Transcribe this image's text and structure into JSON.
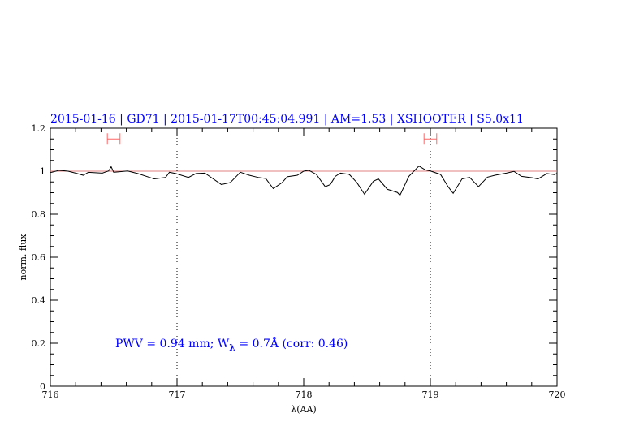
{
  "chart_data": {
    "type": "line",
    "title": "2015-01-16 | GD71 | 2015-01-17T00:45:04.991 | AM=1.53 | XSHOOTER | S5.0x11",
    "xlabel": "λ(AA)",
    "ylabel": "norm. flux",
    "xlim": [
      716,
      720
    ],
    "ylim": [
      0,
      1.2
    ],
    "x_ticks": [
      "716",
      "717",
      "718",
      "719",
      "720"
    ],
    "y_ticks": [
      "0",
      "0.2",
      "0.4",
      "0.6",
      "0.8",
      "1",
      "1.2"
    ],
    "reference_line": 1.0,
    "vertical_markers": [
      717,
      719
    ],
    "error_bars": [
      {
        "center": 716.5,
        "half_width": 0.05,
        "y": 1.15
      },
      {
        "center": 719.0,
        "half_width": 0.05,
        "y": 1.15
      }
    ],
    "annotation": {
      "prefix": "PWV = 0.94 mm; W",
      "sub": "λ",
      "suffix": " = 0.7Å (corr: 0.46)"
    },
    "colors": {
      "title": "#0000ff",
      "series": "#000000",
      "reference": "#e08080",
      "error_bars": "#ff6666",
      "annotation": "#0000ff"
    },
    "series": [
      {
        "x": [
          716.0,
          716.01,
          716.07,
          716.14,
          716.2,
          716.26,
          716.3,
          716.41,
          716.46,
          716.48,
          716.5,
          716.61,
          716.69,
          716.82,
          716.91,
          716.94,
          716.99,
          717.09,
          717.15,
          717.22,
          717.35,
          717.42,
          717.5,
          717.57,
          717.64,
          717.7,
          717.76,
          717.83,
          717.87,
          717.95,
          718.0,
          718.04,
          718.1,
          718.17,
          718.21,
          718.25,
          718.29,
          718.36,
          718.42,
          718.48,
          718.55,
          718.59,
          718.66,
          718.74,
          718.76,
          718.83,
          718.91,
          718.96,
          719.0,
          719.08,
          719.14,
          719.18,
          719.25,
          719.31,
          719.38,
          719.45,
          719.51,
          719.6,
          719.66,
          719.72,
          719.81,
          719.85,
          719.92,
          719.98,
          720.0
        ],
        "y": [
          0.995,
          0.995,
          1.004,
          1.0,
          0.991,
          0.981,
          0.995,
          0.991,
          1.001,
          1.021,
          0.995,
          1.001,
          0.989,
          0.964,
          0.971,
          0.995,
          0.989,
          0.971,
          0.989,
          0.991,
          0.938,
          0.947,
          0.995,
          0.981,
          0.971,
          0.966,
          0.919,
          0.947,
          0.974,
          0.981,
          1.0,
          1.004,
          0.985,
          0.928,
          0.938,
          0.976,
          0.991,
          0.985,
          0.947,
          0.893,
          0.953,
          0.964,
          0.916,
          0.901,
          0.888,
          0.976,
          1.024,
          1.006,
          1.001,
          0.985,
          0.928,
          0.897,
          0.964,
          0.971,
          0.928,
          0.972,
          0.981,
          0.991,
          0.999,
          0.976,
          0.969,
          0.964,
          0.989,
          0.984,
          0.99
        ]
      }
    ]
  }
}
